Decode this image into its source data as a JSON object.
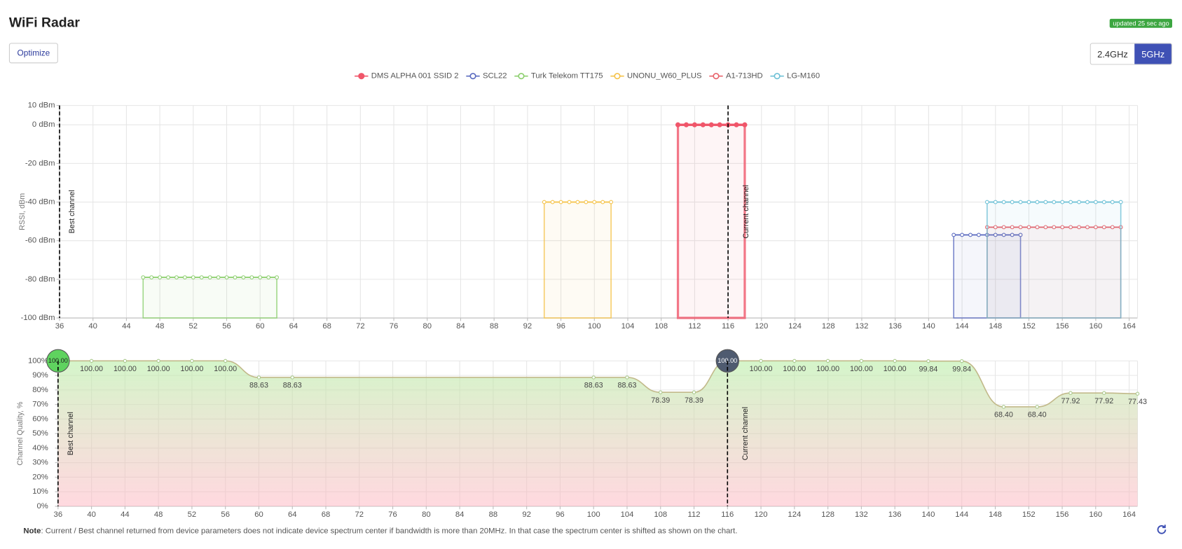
{
  "header": {
    "title": "WiFi Radar",
    "updated": "updated 25 sec ago",
    "optimize": "Optimize",
    "bands": [
      {
        "label": "2.4GHz",
        "active": false
      },
      {
        "label": "5GHz",
        "active": true
      }
    ]
  },
  "note": {
    "label": "Note",
    "text": ": Current / Best channel returned from device parameters does not indicate device spectrum center if bandwidth is more than 20MHz. In that case the spectrum center is shifted as shown on the chart."
  },
  "chart_data": [
    {
      "type": "line",
      "y_label": "RSSI, dBm",
      "legend": "top",
      "grid": true,
      "xlim": [
        36,
        165
      ],
      "xticks": [
        36,
        40,
        44,
        48,
        52,
        56,
        60,
        64,
        68,
        72,
        76,
        80,
        84,
        88,
        92,
        96,
        100,
        104,
        108,
        112,
        116,
        120,
        124,
        128,
        132,
        136,
        140,
        144,
        148,
        152,
        156,
        160,
        164
      ],
      "ylim": [
        -100,
        10
      ],
      "yticks": [
        {
          "value": 10,
          "label": "10 dBm"
        },
        {
          "value": 0,
          "label": "0 dBm"
        },
        {
          "value": -20,
          "label": "-20 dBm"
        },
        {
          "value": -40,
          "label": "-40 dBm"
        },
        {
          "value": -60,
          "label": "-60 dBm"
        },
        {
          "value": -80,
          "label": "-80 dBm"
        },
        {
          "value": -100,
          "label": "-100 dBm"
        }
      ],
      "annotations": [
        {
          "x": 36,
          "label": "Best channel"
        },
        {
          "x": 116,
          "label": "Current channel"
        }
      ],
      "series": [
        {
          "name": "DMS ALPHA 001 SSID 2",
          "color": "#f0566a",
          "marker": "filled",
          "line_width": 3,
          "x": [
            110,
            111,
            112,
            113,
            114,
            115,
            116,
            117,
            118
          ],
          "values": [
            0,
            0,
            0,
            0,
            0,
            0,
            0,
            0,
            0
          ]
        },
        {
          "name": "SCL22",
          "color": "#5b6bc0",
          "marker": "hollow",
          "line_width": 1.5,
          "x": [
            143,
            144,
            145,
            146,
            147,
            148,
            149,
            150,
            151
          ],
          "values": [
            -57,
            -57,
            -57,
            -57,
            -57,
            -57,
            -57,
            -57,
            -57
          ]
        },
        {
          "name": "Turk Telekom TT175",
          "color": "#8ccf6e",
          "marker": "hollow",
          "line_width": 1.5,
          "x": [
            46,
            47,
            48,
            49,
            50,
            51,
            52,
            53,
            54,
            55,
            56,
            57,
            58,
            59,
            60,
            61,
            62
          ],
          "values": [
            -79,
            -79,
            -79,
            -79,
            -79,
            -79,
            -79,
            -79,
            -79,
            -79,
            -79,
            -79,
            -79,
            -79,
            -79,
            -79,
            -79
          ]
        },
        {
          "name": "UNONU_W60_PLUS",
          "color": "#f5c34a",
          "marker": "hollow",
          "line_width": 1.5,
          "x": [
            94,
            95,
            96,
            97,
            98,
            99,
            100,
            101,
            102
          ],
          "values": [
            -40,
            -40,
            -40,
            -40,
            -40,
            -40,
            -40,
            -40,
            -40
          ]
        },
        {
          "name": "A1-713HD",
          "color": "#e8636b",
          "marker": "hollow",
          "line_width": 1.5,
          "x": [
            147,
            148,
            149,
            150,
            151,
            152,
            153,
            154,
            155,
            156,
            157,
            158,
            159,
            160,
            161,
            162,
            163
          ],
          "values": [
            -53,
            -53,
            -53,
            -53,
            -53,
            -53,
            -53,
            -53,
            -53,
            -53,
            -53,
            -53,
            -53,
            -53,
            -53,
            -53,
            -53
          ]
        },
        {
          "name": "LG-M160",
          "color": "#6ec1d6",
          "marker": "hollow",
          "line_width": 1.5,
          "x": [
            147,
            148,
            149,
            150,
            151,
            152,
            153,
            154,
            155,
            156,
            157,
            158,
            159,
            160,
            161,
            162,
            163
          ],
          "values": [
            -40,
            -40,
            -40,
            -40,
            -40,
            -40,
            -40,
            -40,
            -40,
            -40,
            -40,
            -40,
            -40,
            -40,
            -40,
            -40,
            -40
          ]
        }
      ]
    },
    {
      "type": "area",
      "y_label": "Channel Quality, %",
      "grid": true,
      "color": "#c2b98a",
      "xlim": [
        36,
        165
      ],
      "xticks": [
        36,
        40,
        44,
        48,
        52,
        56,
        60,
        64,
        68,
        72,
        76,
        80,
        84,
        88,
        92,
        96,
        100,
        104,
        108,
        112,
        116,
        120,
        124,
        128,
        132,
        136,
        140,
        144,
        148,
        152,
        156,
        160,
        164
      ],
      "ylim": [
        0,
        100
      ],
      "yticks": [
        {
          "value": 0,
          "label": "0%"
        },
        {
          "value": 10,
          "label": "10%"
        },
        {
          "value": 20,
          "label": "20%"
        },
        {
          "value": 30,
          "label": "30%"
        },
        {
          "value": 40,
          "label": "40%"
        },
        {
          "value": 50,
          "label": "50%"
        },
        {
          "value": 60,
          "label": "60%"
        },
        {
          "value": 70,
          "label": "70%"
        },
        {
          "value": 80,
          "label": "80%"
        },
        {
          "value": 90,
          "label": "90%"
        },
        {
          "value": 100,
          "label": "100%"
        }
      ],
      "annotations": [
        {
          "x": 36,
          "label": "Best channel",
          "color": "#5fd35f"
        },
        {
          "x": 116,
          "label": "Current channel",
          "color": "#4f5b70"
        }
      ],
      "x": [
        36,
        40,
        44,
        48,
        52,
        56,
        60,
        64,
        100,
        104,
        108,
        112,
        116,
        120,
        124,
        128,
        132,
        136,
        140,
        144,
        149,
        153,
        157,
        161,
        165
      ],
      "values": [
        100,
        100,
        100,
        100,
        100,
        100,
        88.63,
        88.63,
        88.63,
        88.63,
        78.39,
        78.39,
        100,
        100,
        100,
        100,
        100,
        100,
        99.84,
        99.84,
        68.4,
        68.4,
        77.92,
        77.92,
        77.43
      ],
      "value_labels": [
        "100.00",
        "100.00",
        "100.00",
        "100.00",
        "100.00",
        "100.00",
        "88.63",
        "88.63",
        "88.63",
        "88.63",
        "78.39",
        "78.39",
        "100.00",
        "100.00",
        "100.00",
        "100.00",
        "100.00",
        "100.00",
        "99.84",
        "99.84",
        "68.40",
        "68.40",
        "77.92",
        "77.92",
        "77.43"
      ]
    }
  ]
}
